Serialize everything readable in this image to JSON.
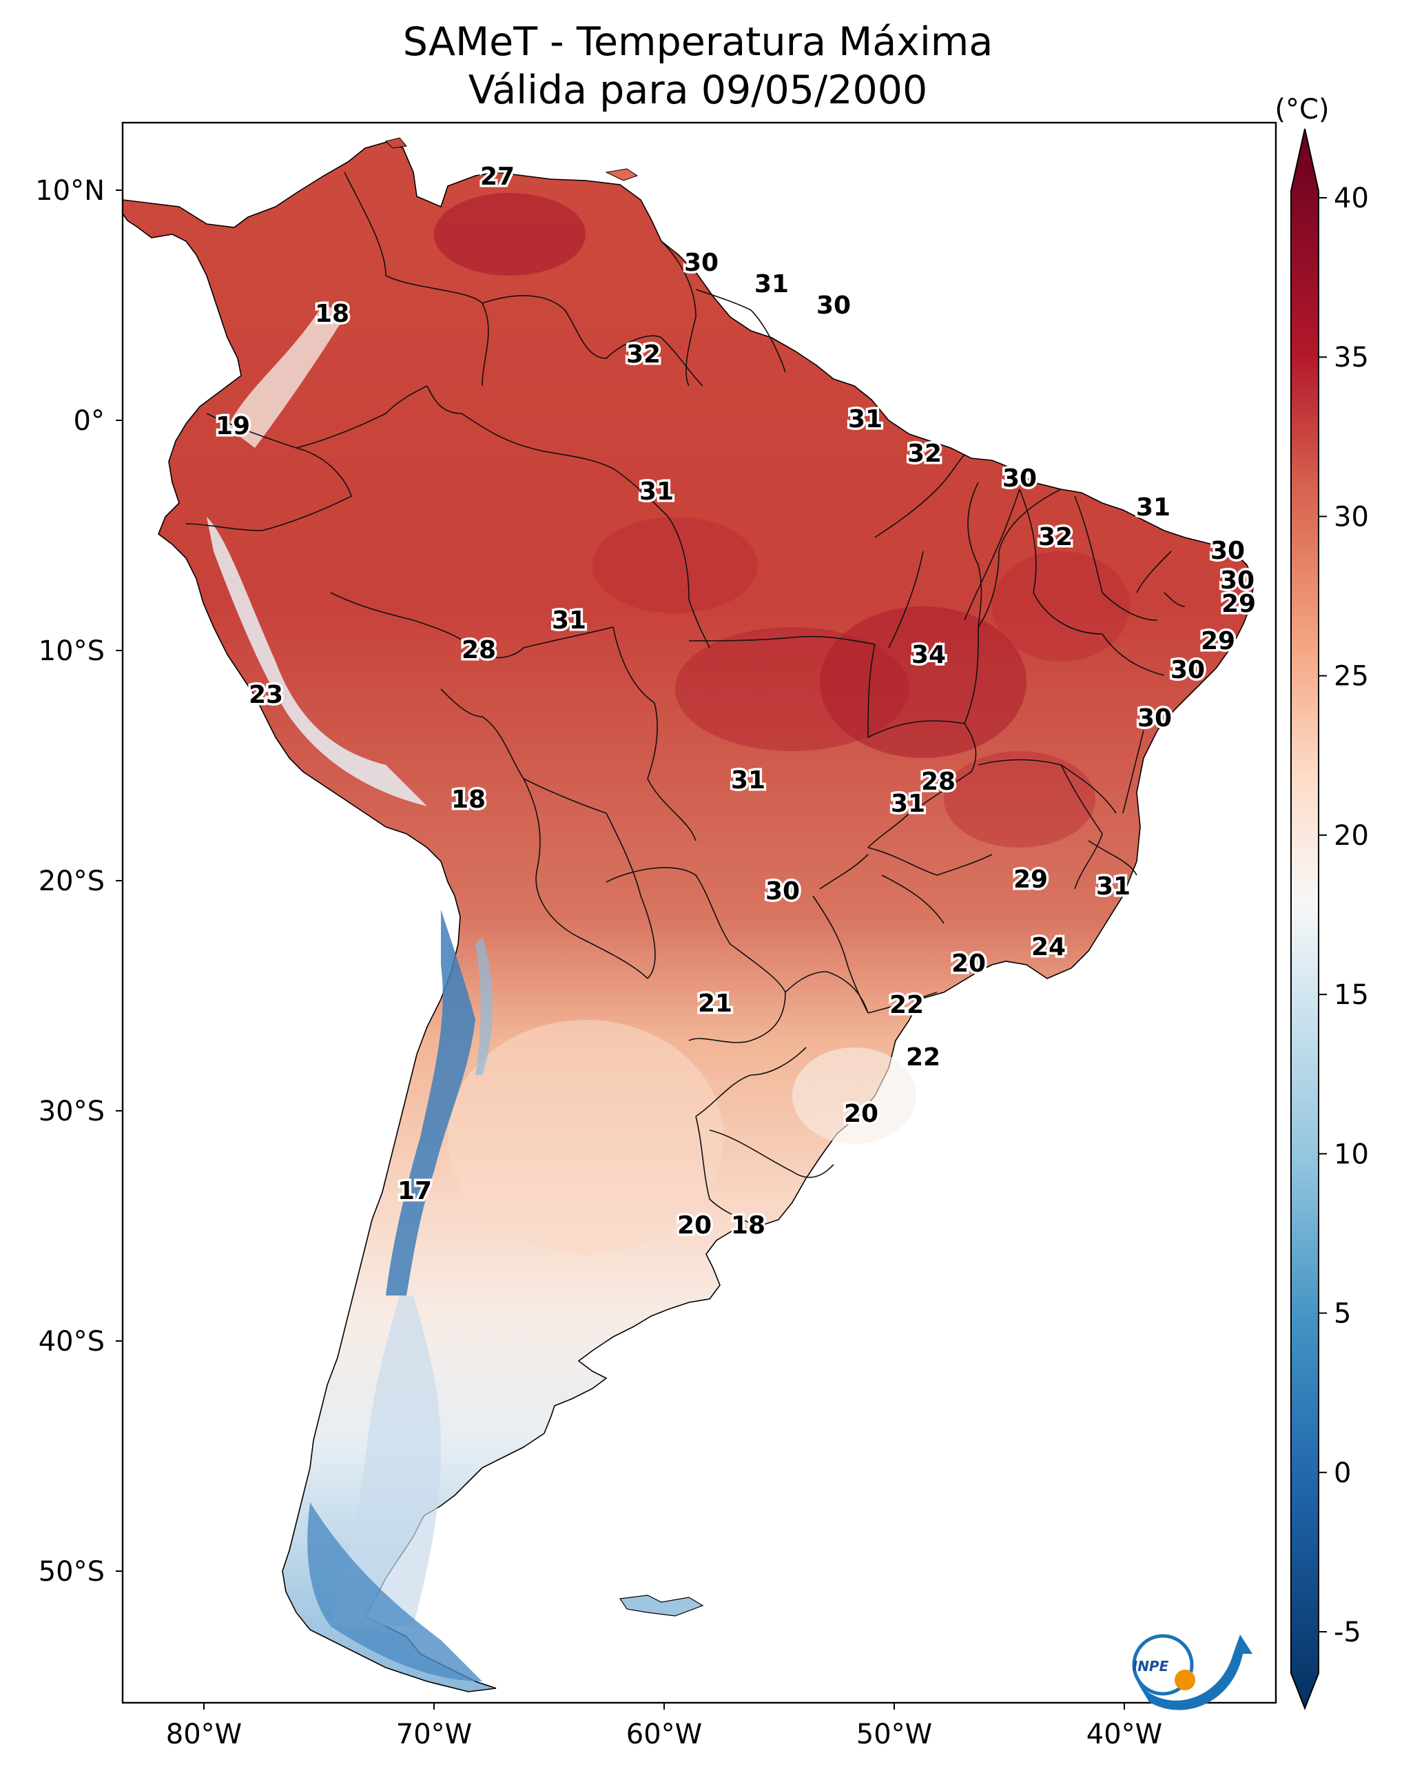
{
  "title": {
    "line1": "SAMeT - Temperatura Máxima",
    "line2": "Válida para 09/05/2000"
  },
  "axes": {
    "lon_labels": [
      "80°W",
      "70°W",
      "60°W",
      "50°W",
      "40°W"
    ],
    "lat_labels": [
      "10°N",
      "0°",
      "10°S",
      "20°S",
      "30°S",
      "40°S",
      "50°S"
    ]
  },
  "colorbar": {
    "unit": "(°C)",
    "min": -5,
    "max": 40,
    "ticks": [
      "-5",
      "0",
      "5",
      "10",
      "15",
      "20",
      "25",
      "30",
      "35",
      "40"
    ],
    "stops": [
      {
        "value": -7,
        "color": "#053061"
      },
      {
        "value": 0,
        "color": "#2166ac"
      },
      {
        "value": 5,
        "color": "#4393c3"
      },
      {
        "value": 10,
        "color": "#92c5de"
      },
      {
        "value": 15,
        "color": "#d1e5f0"
      },
      {
        "value": 18,
        "color": "#f7f7f7"
      },
      {
        "value": 22,
        "color": "#fddbc7"
      },
      {
        "value": 26,
        "color": "#f4a582"
      },
      {
        "value": 31,
        "color": "#d6604d"
      },
      {
        "value": 35,
        "color": "#b2182b"
      },
      {
        "value": 42,
        "color": "#67001f"
      }
    ]
  },
  "map_labels": [
    {
      "id": "t1",
      "text": "27"
    },
    {
      "id": "t2",
      "text": "30"
    },
    {
      "id": "t3",
      "text": "31"
    },
    {
      "id": "t4",
      "text": "30"
    },
    {
      "id": "t5",
      "text": "18"
    },
    {
      "id": "t6",
      "text": "32"
    },
    {
      "id": "t7",
      "text": "19"
    },
    {
      "id": "t8",
      "text": "31"
    },
    {
      "id": "t9",
      "text": "32"
    },
    {
      "id": "t10",
      "text": "30"
    },
    {
      "id": "t11",
      "text": "31"
    },
    {
      "id": "t12",
      "text": "31"
    },
    {
      "id": "t13",
      "text": "32"
    },
    {
      "id": "t14",
      "text": "30"
    },
    {
      "id": "t15",
      "text": "30"
    },
    {
      "id": "t16",
      "text": "29"
    },
    {
      "id": "t17",
      "text": "31"
    },
    {
      "id": "t18",
      "text": "28"
    },
    {
      "id": "t19",
      "text": "34"
    },
    {
      "id": "t20",
      "text": "29"
    },
    {
      "id": "t21",
      "text": "30"
    },
    {
      "id": "t22",
      "text": "23"
    },
    {
      "id": "t23",
      "text": "30"
    },
    {
      "id": "t24",
      "text": "18"
    },
    {
      "id": "t25",
      "text": "31"
    },
    {
      "id": "t26",
      "text": "28"
    },
    {
      "id": "t27",
      "text": "31"
    },
    {
      "id": "t28",
      "text": "30"
    },
    {
      "id": "t29",
      "text": "29"
    },
    {
      "id": "t30",
      "text": "31"
    },
    {
      "id": "t31",
      "text": "24"
    },
    {
      "id": "t32",
      "text": "20"
    },
    {
      "id": "t33",
      "text": "21"
    },
    {
      "id": "t34",
      "text": "22"
    },
    {
      "id": "t35",
      "text": "22"
    },
    {
      "id": "t36",
      "text": "20"
    },
    {
      "id": "t37",
      "text": "17"
    },
    {
      "id": "t38",
      "text": "20"
    },
    {
      "id": "t39",
      "text": "18"
    }
  ],
  "logo": {
    "text": "INPE",
    "colors": {
      "blue": "#1a73b8",
      "orange": "#f29100"
    }
  },
  "colors": {
    "frame": "#000000",
    "border": "#111111",
    "coast": "#000000"
  }
}
